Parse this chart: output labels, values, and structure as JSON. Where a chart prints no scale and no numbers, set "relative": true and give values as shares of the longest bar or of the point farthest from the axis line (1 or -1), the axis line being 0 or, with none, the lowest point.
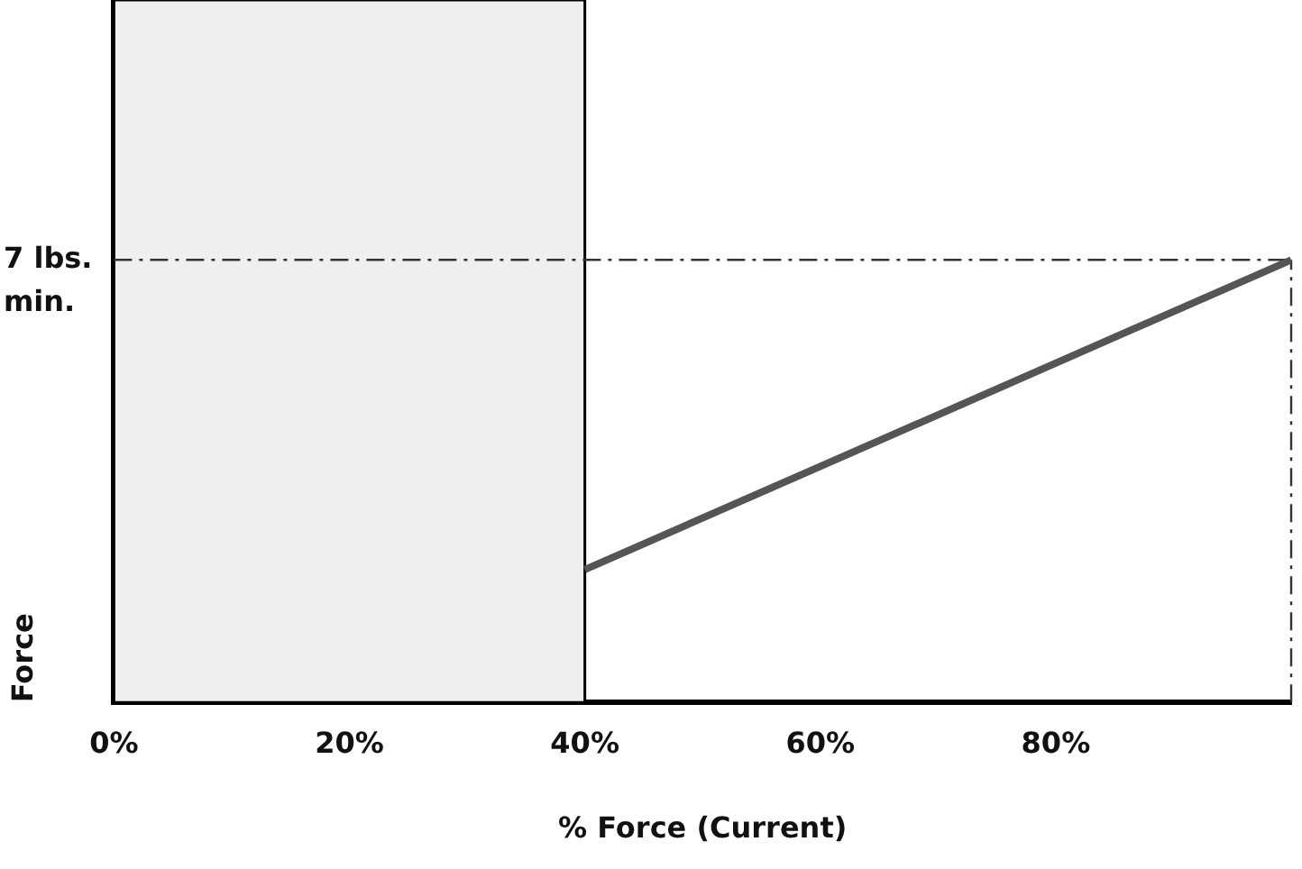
{
  "chart_data": {
    "type": "line",
    "relative": true,
    "xlabel": "% Force (Current)",
    "ylabel": "Force",
    "x": [
      40,
      100
    ],
    "series": [
      {
        "color": "#555555",
        "values": [
          0.3,
          1
        ]
      }
    ],
    "xlim": [
      0,
      100
    ],
    "xticks": [
      {
        "value": 0,
        "label": "0%"
      },
      {
        "value": 20,
        "label": "20%"
      },
      {
        "value": 40,
        "label": "40%"
      },
      {
        "value": 60,
        "label": "60%"
      },
      {
        "value": 80,
        "label": "80%"
      }
    ],
    "bands": [
      {
        "axis": "x",
        "from": 0,
        "to": 40,
        "color": "#efefef"
      }
    ],
    "ref_lines": [
      {
        "axis": "y",
        "value": 1,
        "label": "7 lbs. min.",
        "line_style": "dashed"
      },
      {
        "axis": "x",
        "value": 100,
        "line_style": "dashed"
      }
    ],
    "grid": false,
    "legend": false,
    "marker": "none"
  }
}
